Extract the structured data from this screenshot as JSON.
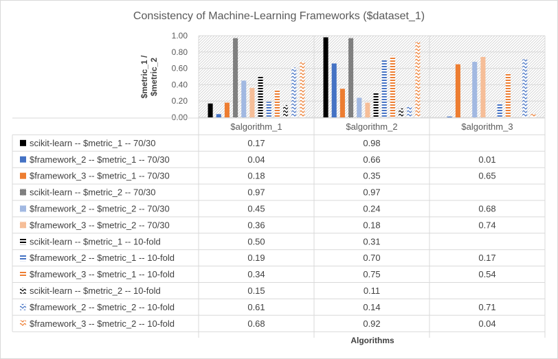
{
  "chart_data": {
    "type": "bar",
    "title": "Consistency of Machine-Learning Frameworks ($dataset_1)",
    "xlabel": "Algorithms",
    "ylabel": "$metric_1 / $metric_2",
    "ylim": [
      0,
      1
    ],
    "yticks": [
      "0.00",
      "0.20",
      "0.40",
      "0.60",
      "0.80",
      "1.00"
    ],
    "grid": true,
    "legend": "data-table",
    "categories": [
      "$algorithm_1",
      "$algorithm_2",
      "$algorithm_3"
    ],
    "series": [
      {
        "name": "scikit-learn -- $metric_1 -- 70/30",
        "values": [
          0.17,
          0.98,
          null
        ],
        "labels": [
          "0.17",
          "0.98",
          ""
        ],
        "color": "#000000",
        "pattern": "solid"
      },
      {
        "name": "$framework_2 -- $metric_1 -- 70/30",
        "values": [
          0.04,
          0.66,
          0.01
        ],
        "labels": [
          "0.04",
          "0.66",
          "0.01"
        ],
        "color": "#4472c4",
        "pattern": "solid"
      },
      {
        "name": "$framework_3 -- $metric_1 -- 70/30",
        "values": [
          0.18,
          0.35,
          0.65
        ],
        "labels": [
          "0.18",
          "0.35",
          "0.65"
        ],
        "color": "#ed7d31",
        "pattern": "solid"
      },
      {
        "name": "scikit-learn -- $metric_2 -- 70/30",
        "values": [
          0.97,
          0.97,
          null
        ],
        "labels": [
          "0.97",
          "0.97",
          ""
        ],
        "color": "#000000",
        "pattern": "checker"
      },
      {
        "name": "$framework_2 -- $metric_2 -- 70/30",
        "values": [
          0.45,
          0.24,
          0.68
        ],
        "labels": [
          "0.45",
          "0.24",
          "0.68"
        ],
        "color": "#4472c4",
        "pattern": "checker"
      },
      {
        "name": "$framework_3 -- $metric_2 -- 70/30",
        "values": [
          0.36,
          0.18,
          0.74
        ],
        "labels": [
          "0.36",
          "0.18",
          "0.74"
        ],
        "color": "#ed7d31",
        "pattern": "checker"
      },
      {
        "name": "scikit-learn -- $metric_1 -- 10-fold",
        "values": [
          0.5,
          0.31,
          null
        ],
        "labels": [
          "0.50",
          "0.31",
          ""
        ],
        "color": "#000000",
        "pattern": "hstripe"
      },
      {
        "name": "$framework_2 -- $metric_1 -- 10-fold",
        "values": [
          0.19,
          0.7,
          0.17
        ],
        "labels": [
          "0.19",
          "0.70",
          "0.17"
        ],
        "color": "#4472c4",
        "pattern": "hstripe"
      },
      {
        "name": "$framework_3 -- $metric_1 -- 10-fold",
        "values": [
          0.34,
          0.75,
          0.54
        ],
        "labels": [
          "0.34",
          "0.75",
          "0.54"
        ],
        "color": "#ed7d31",
        "pattern": "hstripe"
      },
      {
        "name": "scikit-learn -- $metric_2 -- 10-fold",
        "values": [
          0.15,
          0.11,
          null
        ],
        "labels": [
          "0.15",
          "0.11",
          ""
        ],
        "color": "#000000",
        "pattern": "zigzag"
      },
      {
        "name": "$framework_2 -- $metric_2 -- 10-fold",
        "values": [
          0.61,
          0.14,
          0.71
        ],
        "labels": [
          "0.61",
          "0.14",
          "0.71"
        ],
        "color": "#4472c4",
        "pattern": "zigzag"
      },
      {
        "name": "$framework_3 -- $metric_2 -- 10-fold",
        "values": [
          0.68,
          0.92,
          0.04
        ],
        "labels": [
          "0.68",
          "0.92",
          "0.04"
        ],
        "color": "#ed7d31",
        "pattern": "zigzag"
      }
    ]
  }
}
